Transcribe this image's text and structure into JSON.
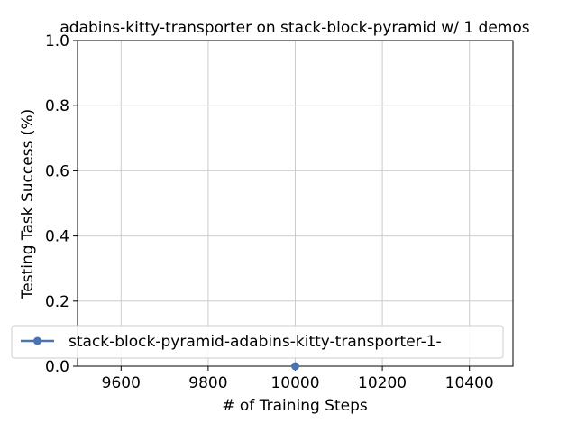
{
  "chart_data": {
    "type": "line",
    "title": "adabins-kitty-transporter on stack-block-pyramid w/ 1 demos",
    "xlabel": "# of Training Steps",
    "ylabel": "Testing Task Success (%)",
    "xlim": [
      9500,
      10500
    ],
    "ylim": [
      0.0,
      1.0
    ],
    "xticks": [
      9600,
      9800,
      10000,
      10200,
      10400
    ],
    "yticks": [
      0.0,
      0.2,
      0.4,
      0.6,
      0.8,
      1.0
    ],
    "grid": true,
    "legend_position": "lower-left",
    "series": [
      {
        "name": "stack-block-pyramid-adabins-kitty-transporter-1-",
        "color": "#4c72b0",
        "marker": "circle",
        "x": [
          10000
        ],
        "y": [
          0.0
        ]
      }
    ]
  }
}
